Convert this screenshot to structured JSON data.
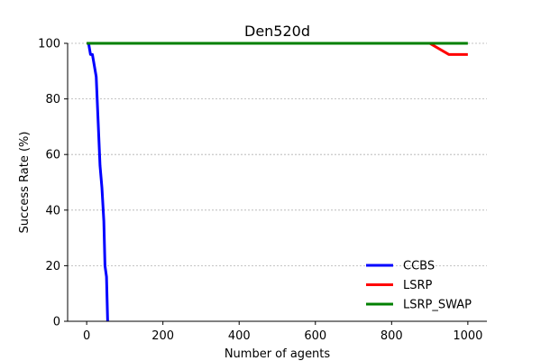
{
  "chart_data": {
    "type": "line",
    "title": "Den520d",
    "xlabel": "Number of agents",
    "ylabel": "Success Rate (%)",
    "xlim": [
      -50,
      1050
    ],
    "ylim": [
      0,
      100
    ],
    "xticks": [
      0,
      200,
      400,
      600,
      800,
      1000
    ],
    "yticks": [
      0,
      20,
      40,
      60,
      80,
      100
    ],
    "grid": "y-dashed",
    "legend_position": "bottom-right",
    "series": [
      {
        "name": "CCBS",
        "color": "#0000ff",
        "points": [
          [
            5,
            100
          ],
          [
            10,
            96
          ],
          [
            15,
            96
          ],
          [
            20,
            92
          ],
          [
            25,
            88
          ],
          [
            30,
            72
          ],
          [
            35,
            56
          ],
          [
            40,
            48
          ],
          [
            45,
            36
          ],
          [
            48,
            20
          ],
          [
            52,
            16
          ],
          [
            55,
            0
          ]
        ]
      },
      {
        "name": "LSRP",
        "color": "#ff0000",
        "points": [
          [
            0,
            100
          ],
          [
            100,
            100
          ],
          [
            200,
            100
          ],
          [
            300,
            100
          ],
          [
            400,
            100
          ],
          [
            500,
            100
          ],
          [
            600,
            100
          ],
          [
            700,
            100
          ],
          [
            800,
            100
          ],
          [
            900,
            100
          ],
          [
            950,
            96
          ],
          [
            1000,
            96
          ]
        ]
      },
      {
        "name": "LSRP_SWAP",
        "color": "#008000",
        "points": [
          [
            0,
            100
          ],
          [
            100,
            100
          ],
          [
            200,
            100
          ],
          [
            300,
            100
          ],
          [
            400,
            100
          ],
          [
            500,
            100
          ],
          [
            600,
            100
          ],
          [
            700,
            100
          ],
          [
            800,
            100
          ],
          [
            900,
            100
          ],
          [
            950,
            100
          ],
          [
            1000,
            100
          ]
        ]
      }
    ]
  }
}
